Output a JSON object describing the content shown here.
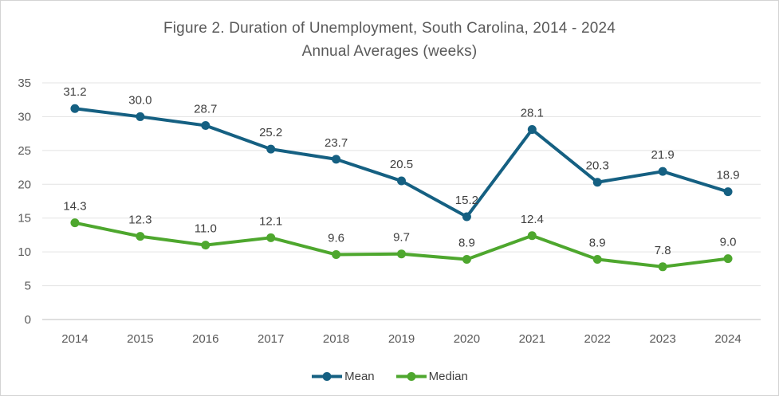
{
  "chart_data": {
    "type": "line",
    "title": "Figure 2. Duration of Unemployment, South Carolina, 2014 - 2024",
    "subtitle": "Annual Averages (weeks)",
    "categories": [
      "2014",
      "2015",
      "2016",
      "2017",
      "2018",
      "2019",
      "2020",
      "2021",
      "2022",
      "2023",
      "2024"
    ],
    "series": [
      {
        "name": "Mean",
        "color": "#156082",
        "values": [
          31.2,
          30.0,
          28.7,
          25.2,
          23.7,
          20.5,
          15.2,
          28.1,
          20.3,
          21.9,
          18.9
        ]
      },
      {
        "name": "Median",
        "color": "#4EA72E",
        "values": [
          14.3,
          12.3,
          11.0,
          12.1,
          9.6,
          9.7,
          8.9,
          12.4,
          8.9,
          7.8,
          9.0
        ]
      }
    ],
    "ylim": [
      0,
      35
    ],
    "ytick_step": 5,
    "yticks": [
      0,
      5,
      10,
      15,
      20,
      25,
      30,
      35
    ],
    "grid": true,
    "data_labels": true,
    "legend_position": "bottom",
    "colors": {
      "title_text": "#595959",
      "axis_text": "#595959",
      "data_label_text": "#404040",
      "gridline": "#e3e3e3",
      "axis_line": "#bfbfbf"
    }
  }
}
